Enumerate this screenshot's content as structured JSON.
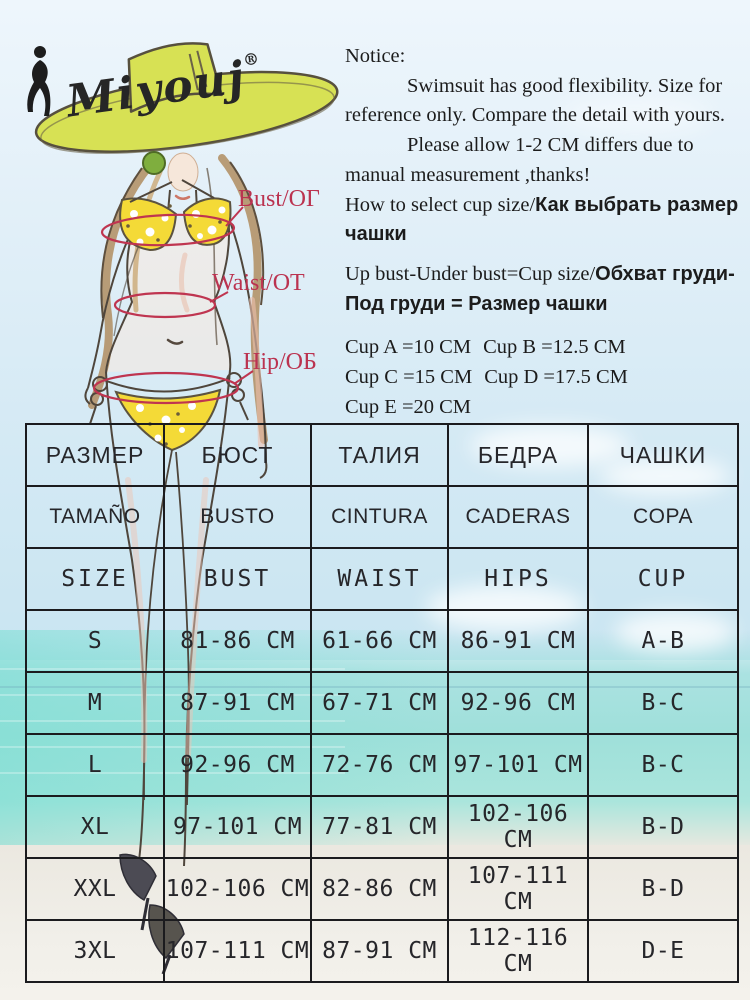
{
  "brand": {
    "logo_text": "Miyouj",
    "registered_mark": "®"
  },
  "notice": {
    "title": "Notice:",
    "para_flexibility": "Swimsuit has good flexibility. Size for reference only. Compare the detail with yours.",
    "para_allowance": "Please allow 1-2 CM differs due to manual measurement ,thanks!",
    "cup_select_en": "How to select cup size/",
    "cup_select_ru": "Как выбрать размер чашки",
    "formula_en": "Up bust-Under bust=Cup size/",
    "formula_ru": "Обхват груди-Под груди = Размер чашки",
    "cups": [
      "Cup A =10 CM",
      "Cup B =12.5 CM",
      "Cup C =15 CM",
      "Cup D =17.5 CM",
      "Cup E =20 CM"
    ]
  },
  "measure_labels": [
    "Bust/ОГ",
    "Waist/ОТ",
    "Hip/ОБ"
  ],
  "size_table": {
    "header_rows": [
      [
        "РАЗМЕР",
        "БЮСТ",
        "ТАЛИЯ",
        "БЕДРА",
        "ЧАШКИ"
      ],
      [
        "TAMAÑO",
        "BUSTO",
        "CINTURA",
        "CADERAS",
        "COPA"
      ],
      [
        "SIZE",
        "BUST",
        "WAIST",
        "HIPS",
        "CUP"
      ]
    ],
    "rows": [
      [
        "S",
        "81-86 CM",
        "61-66 CM",
        "86-91 CM",
        "A-B"
      ],
      [
        "M",
        "87-91 CM",
        "67-71 CM",
        "92-96 CM",
        "B-C"
      ],
      [
        "L",
        "92-96 CM",
        "72-76 CM",
        "97-101 CM",
        "B-C"
      ],
      [
        "XL",
        "97-101 CM",
        "77-81 CM",
        "102-106 CM",
        "B-D"
      ],
      [
        "XXL",
        "102-106 CM",
        "82-86 CM",
        "107-111 CM",
        "B-D"
      ],
      [
        "3XL",
        "107-111 CM",
        "87-91 CM",
        "112-116 CM",
        "D-E"
      ]
    ]
  },
  "colors": {
    "accent_red": "#bb3350",
    "hat_green": "#d7e154",
    "bikini_yellow": "#f4da37",
    "table_border": "#1b1b1e",
    "sea": "#9fe0da",
    "sky": "#e1eff8",
    "sand": "#ebe8e0"
  }
}
